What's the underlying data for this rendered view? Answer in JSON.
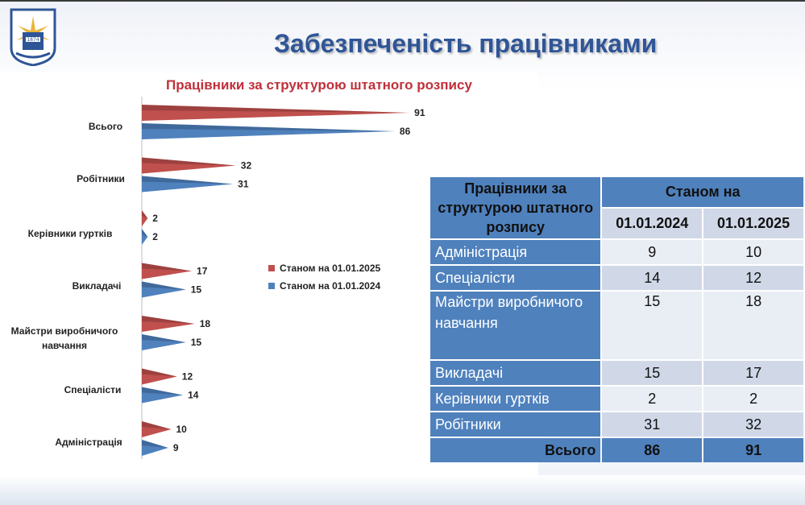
{
  "slide": {
    "title": "Забезпеченість працівниками",
    "logo_year": "1874"
  },
  "chart_data": {
    "type": "bar",
    "orientation": "horizontal",
    "title": "Працівники за структурою штатного розпису",
    "categories": [
      "Всього",
      "Робітники",
      "Керівники гуртків",
      "Викладачі",
      "Майстри виробничого навчання",
      "Спеціалісти",
      "Адміністрація"
    ],
    "series": [
      {
        "name": "Станом на 01.01.2025",
        "color": "#c0504d",
        "values": [
          91,
          32,
          2,
          17,
          18,
          12,
          10
        ]
      },
      {
        "name": "Станом на 01.01.2024",
        "color": "#4f81bd",
        "values": [
          86,
          31,
          2,
          15,
          15,
          14,
          9
        ]
      }
    ],
    "legend": "right",
    "grid": false
  },
  "table": {
    "header_label": "Працівники за структурою штатного розпису",
    "header_group": "Станом на",
    "col_2024": "01.01.2024",
    "col_2025": "01.01.2025",
    "rows": [
      {
        "label": "Адміністрація",
        "v2024": "9",
        "v2025": "10"
      },
      {
        "label": "Спеціалісти",
        "v2024": "14",
        "v2025": "12"
      },
      {
        "label": "Майстри виробничого навчання",
        "v2024": "15",
        "v2025": "18"
      },
      {
        "label": "Викладачі",
        "v2024": "15",
        "v2025": "17"
      },
      {
        "label": "Керівники гуртків",
        "v2024": "2",
        "v2025": "2"
      },
      {
        "label": "Робітники",
        "v2024": "31",
        "v2025": "32"
      }
    ],
    "total": {
      "label": "Всього",
      "v2024": "86",
      "v2025": "91"
    }
  }
}
